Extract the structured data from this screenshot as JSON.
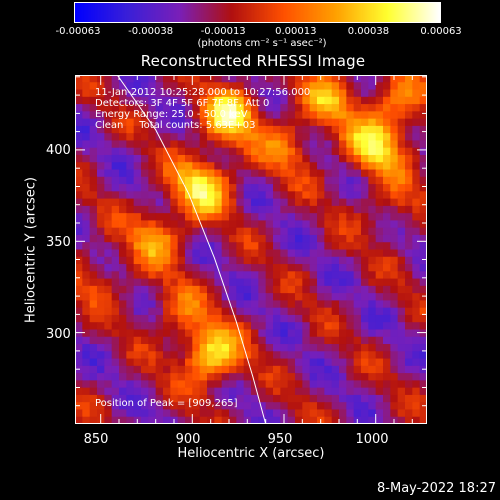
{
  "colorbar": {
    "ticks": [
      "-0.00063",
      "-0.00038",
      "-0.00013",
      "0.00013",
      "0.00038",
      "0.00063"
    ],
    "unit_label": "(photons cm⁻² s⁻¹ asec⁻²)",
    "colormap": [
      "#0000ff",
      "#3a1fd8",
      "#7a1fb8",
      "#b01010",
      "#ff5000",
      "#ffa000",
      "#ffff30",
      "#ffffff"
    ]
  },
  "chart_data": {
    "type": "heatmap",
    "title": "Reconstructed RHESSI Image",
    "xlabel": "Heliocentric X (arcsec)",
    "ylabel": "Heliocentric Y (arcsec)",
    "xlim": [
      836,
      1028
    ],
    "ylim": [
      250,
      441
    ],
    "x_ticks": [
      "850",
      "900",
      "950",
      "1000"
    ],
    "y_ticks": [
      "300",
      "350",
      "400"
    ],
    "value_range": [
      -0.00063,
      0.00063
    ],
    "peak": [
      909,
      265
    ],
    "limb_points": [
      [
        859,
        441
      ],
      [
        880,
        411
      ],
      [
        898,
        376
      ],
      [
        912,
        341
      ],
      [
        924,
        306
      ],
      [
        933,
        276
      ],
      [
        940,
        250
      ]
    ],
    "bright_sources": [
      {
        "x": 920,
        "y": 418,
        "value": 0.0006
      },
      {
        "x": 905,
        "y": 380,
        "value": 0.0006
      },
      {
        "x": 1000,
        "y": 402,
        "value": 0.00055
      },
      {
        "x": 910,
        "y": 288,
        "value": 0.00063
      },
      {
        "x": 975,
        "y": 428,
        "value": 0.0004
      },
      {
        "x": 880,
        "y": 352,
        "value": 0.0004
      },
      {
        "x": 1012,
        "y": 425,
        "value": 0.00035
      },
      {
        "x": 952,
        "y": 402,
        "value": 0.0003
      },
      {
        "x": 1010,
        "y": 370,
        "value": 0.0002
      },
      {
        "x": 892,
        "y": 312,
        "value": 0.00025
      },
      {
        "x": 848,
        "y": 330,
        "value": 0.0002
      }
    ],
    "annotations": [
      "11-Jan-2012 10:25:28.000 to 10:27:56.000",
      "Detectors: 3F 4F 5F 6F 7F 8F, Att 0",
      "Energy Range: 25.0 - 50.0 keV",
      "Clean     Total counts: 5.63E+03"
    ],
    "peak_label": "Position of Peak = [909,265]"
  },
  "footer": {
    "date": "8-May-2022 18:27"
  }
}
